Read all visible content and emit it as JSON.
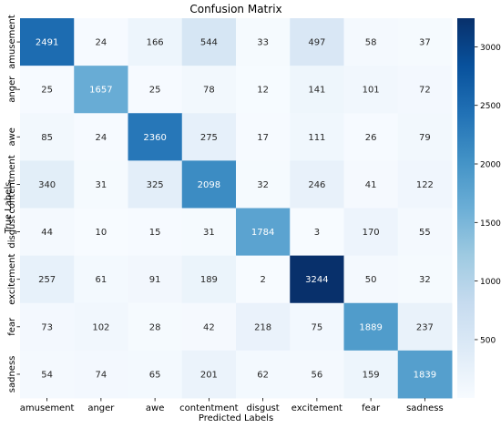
{
  "chart_data": {
    "type": "heatmap",
    "title": "Confusion Matrix",
    "xlabel": "Predicted Labels",
    "ylabel": "True Labels",
    "x_categories": [
      "amusement",
      "anger",
      "awe",
      "contentment",
      "disgust",
      "excitement",
      "fear",
      "sadness"
    ],
    "y_categories": [
      "amusement",
      "anger",
      "awe",
      "contentment",
      "disgust",
      "excitement",
      "fear",
      "sadness"
    ],
    "values": [
      [
        2491,
        24,
        166,
        544,
        33,
        497,
        58,
        37
      ],
      [
        25,
        1657,
        25,
        78,
        12,
        141,
        101,
        72
      ],
      [
        85,
        24,
        2360,
        275,
        17,
        111,
        26,
        79
      ],
      [
        340,
        31,
        325,
        2098,
        32,
        246,
        41,
        122
      ],
      [
        44,
        10,
        15,
        31,
        1784,
        3,
        170,
        55
      ],
      [
        257,
        61,
        91,
        189,
        2,
        3244,
        50,
        32
      ],
      [
        73,
        102,
        28,
        42,
        218,
        75,
        1889,
        237
      ],
      [
        54,
        74,
        65,
        201,
        62,
        56,
        159,
        1839
      ]
    ],
    "colormap": "Blues",
    "colorbar": {
      "vmin": 2,
      "vmax": 3244,
      "ticks": [
        500,
        1000,
        1500,
        2000,
        2500,
        3000
      ]
    },
    "grid": false,
    "legend": "colorbar-right"
  }
}
